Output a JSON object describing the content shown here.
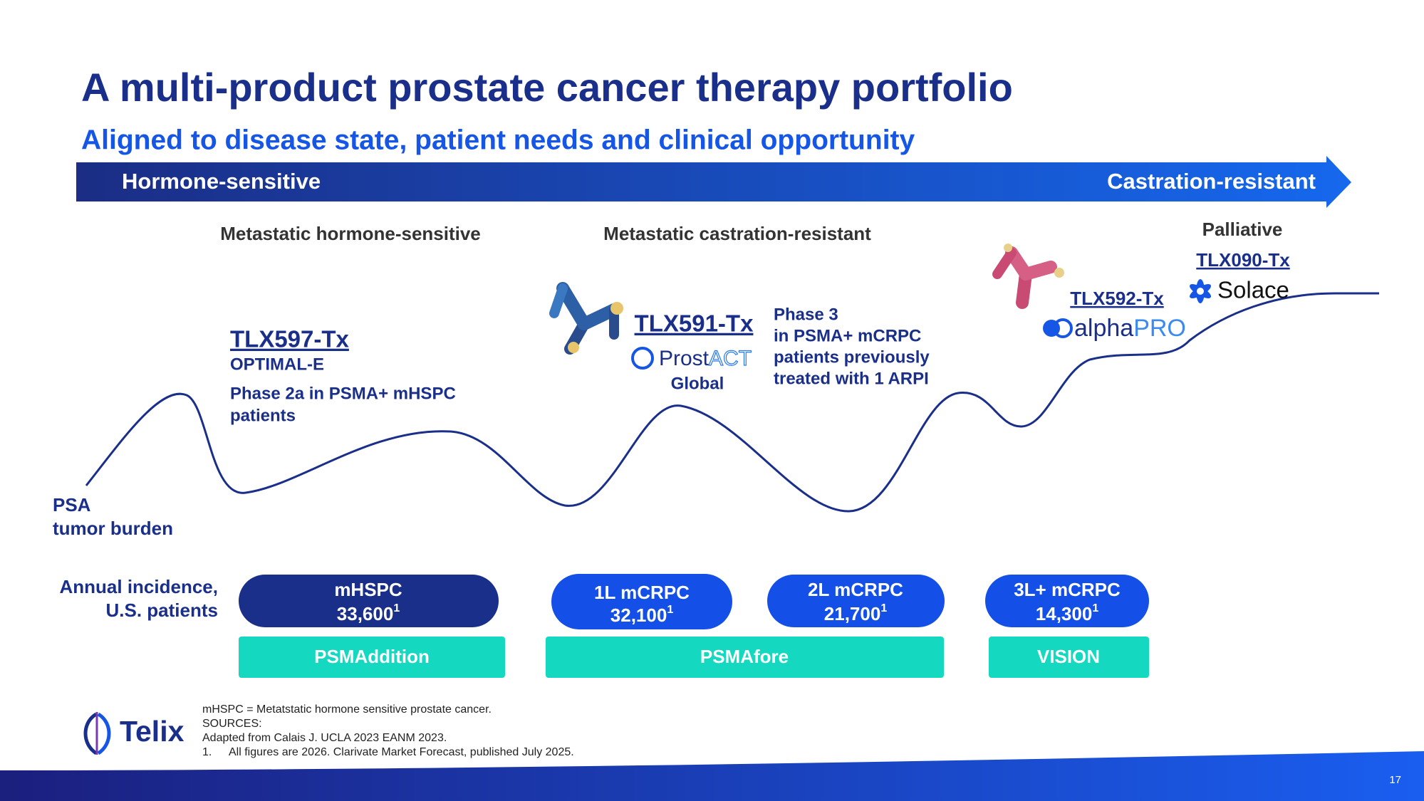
{
  "header": {
    "title": "A multi-product prostate cancer therapy portfolio",
    "subtitle": "Aligned to disease state, patient needs and clinical opportunity"
  },
  "arrow": {
    "left": "Hormone-sensitive",
    "right": "Castration-resistant"
  },
  "stages": [
    "Metastatic hormone-sensitive",
    "Metastatic castration-resistant",
    "Palliative"
  ],
  "products": [
    {
      "name": "TLX597-Tx",
      "trial": "OPTIMAL-E",
      "lines": [
        "Phase 2a in PSMA+ mHSPC",
        "patients"
      ]
    },
    {
      "name": "TLX591-Tx",
      "brand": [
        "Prost",
        "ACT"
      ],
      "scope": "Global",
      "lines": [
        "Phase 3",
        "in PSMA+ mCRPC",
        "patients previously",
        "treated with 1 ARPI"
      ]
    },
    {
      "name": "TLX592-Tx",
      "brand": [
        "alpha",
        "PRO"
      ]
    },
    {
      "name": "TLX090-Tx",
      "brand": [
        "Solace"
      ]
    }
  ],
  "curve_label": [
    "PSA",
    "tumor burden"
  ],
  "incidence_label": [
    "Annual incidence,",
    "U.S. patients"
  ],
  "incidence": [
    {
      "label": "mHSPC",
      "value": "33,600",
      "note": "1"
    },
    {
      "label": "1L mCRPC",
      "value": "32,100",
      "note": "1"
    },
    {
      "label": "2L mCRPC",
      "value": "21,700",
      "note": "1"
    },
    {
      "label": "3L+ mCRPC",
      "value": "14,300",
      "note": "1"
    }
  ],
  "trials": [
    "PSMAddition",
    "PSMAfore",
    "VISION"
  ],
  "footnotes": [
    "mHSPC = Metatstatic hormone sensitive prostate cancer.",
    "SOURCES:",
    "Adapted from Calais J. UCLA 2023 EANM 2023."
  ],
  "footnote_numbered": {
    "number": "1.",
    "text": "All figures are 2026. Clarivate Market Forecast, published July 2025."
  },
  "logo": "Telix",
  "page_number": "17"
}
